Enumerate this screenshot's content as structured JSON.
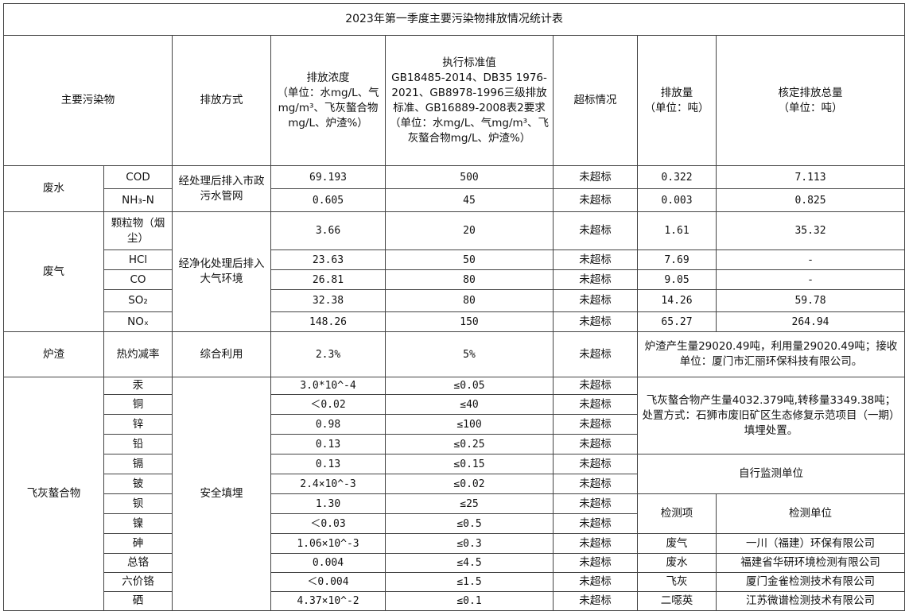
{
  "title": "2023年第一季度主要污染物排放情况统计表",
  "header": {
    "pollutant": "主要污染物",
    "method": "排放方式",
    "concentration": "排放浓度\n（单位：水mg/L、气mg/m³、飞灰螯合物mg/L、炉渣%）",
    "standard": "执行标准值\nGB18485-2014、DB35 1976-2021、GB8978-1996三级排放标准、GB16889-2008表2要求（单位：水mg/L、气mg/m³、飞灰螯合物mg/L、炉渣%）",
    "exceed": "超标情况",
    "amount": "排放量\n（单位：吨）",
    "total": "核定排放总量\n（单位：吨）"
  },
  "wastewater": {
    "category": "废水",
    "method": "经处理后排入市政污水管网",
    "rows": [
      {
        "name": "COD",
        "conc": "69.193",
        "std": "500",
        "exceed": "未超标",
        "amount": "0.322",
        "total": "7.113"
      },
      {
        "name": "NH₃-N",
        "conc": "0.605",
        "std": "45",
        "exceed": "未超标",
        "amount": "0.003",
        "total": "0.825"
      }
    ]
  },
  "exhaust": {
    "category": "废气",
    "method": "经净化处理后排入大气环境",
    "rows": [
      {
        "name": "颗粒物（烟尘）",
        "conc": "3.66",
        "std": "20",
        "exceed": "未超标",
        "amount": "1.61",
        "total": "35.32"
      },
      {
        "name": "HCl",
        "conc": "23.63",
        "std": "50",
        "exceed": "未超标",
        "amount": "7.69",
        "total": "-"
      },
      {
        "name": "CO",
        "conc": "26.81",
        "std": "80",
        "exceed": "未超标",
        "amount": "9.05",
        "total": "-"
      },
      {
        "name": "SO₂",
        "conc": "32.38",
        "std": "80",
        "exceed": "未超标",
        "amount": "14.26",
        "total": "59.78"
      },
      {
        "name": "NOₓ",
        "conc": "148.26",
        "std": "150",
        "exceed": "未超标",
        "amount": "65.27",
        "total": "264.94"
      }
    ]
  },
  "slag": {
    "category": "炉渣",
    "name": "热灼减率",
    "method": "综合利用",
    "conc": "2.3%",
    "std": "5%",
    "exceed": "未超标",
    "note": "炉渣产生量29020.49吨，利用量29020.49吨；接收单位：厦门市汇丽环保科技有限公司。"
  },
  "flyash": {
    "category": "飞灰螯合物",
    "method": "安全填埋",
    "note": "飞灰螯合物产生量4032.379吨,转移量3349.38吨；\n处置方式：石狮市废旧矿区生态修复示范项目（一期）填埋处置。",
    "rows": [
      {
        "name": "汞",
        "conc": "3.0*10^-4",
        "std": "≤0.05",
        "exceed": "未超标"
      },
      {
        "name": "铜",
        "conc": "＜0.02",
        "std": "≤40",
        "exceed": "未超标"
      },
      {
        "name": "锌",
        "conc": "0.98",
        "std": "≤100",
        "exceed": "未超标"
      },
      {
        "name": "铅",
        "conc": "0.13",
        "std": "≤0.25",
        "exceed": "未超标"
      },
      {
        "name": "镉",
        "conc": "0.13",
        "std": "≤0.15",
        "exceed": "未超标"
      },
      {
        "name": "铍",
        "conc": "2.4×10^-3",
        "std": "≤0.02",
        "exceed": "未超标"
      },
      {
        "name": "钡",
        "conc": "1.30",
        "std": "≤25",
        "exceed": "未超标"
      },
      {
        "name": "镍",
        "conc": "＜0.03",
        "std": "≤0.5",
        "exceed": "未超标"
      },
      {
        "name": "砷",
        "conc": "1.06×10^-3",
        "std": "≤0.3",
        "exceed": "未超标"
      },
      {
        "name": "总铬",
        "conc": "0.004",
        "std": "≤4.5",
        "exceed": "未超标"
      },
      {
        "name": "六价铬",
        "conc": "＜0.004",
        "std": "≤1.5",
        "exceed": "未超标"
      },
      {
        "name": "硒",
        "conc": "4.37×10^-2",
        "std": "≤0.1",
        "exceed": "未超标"
      }
    ]
  },
  "monitoring": {
    "title": "自行监测单位",
    "col_item": "检测项",
    "col_unit": "检测单位",
    "rows": [
      {
        "item": "废气",
        "unit": "一川（福建）环保有限公司"
      },
      {
        "item": "废水",
        "unit": "福建省华研环境检测有限公司"
      },
      {
        "item": "飞灰",
        "unit": "厦门金雀检测技术有限公司"
      },
      {
        "item": "二噁英",
        "unit": "江苏微谱检测技术有限公司"
      }
    ]
  }
}
